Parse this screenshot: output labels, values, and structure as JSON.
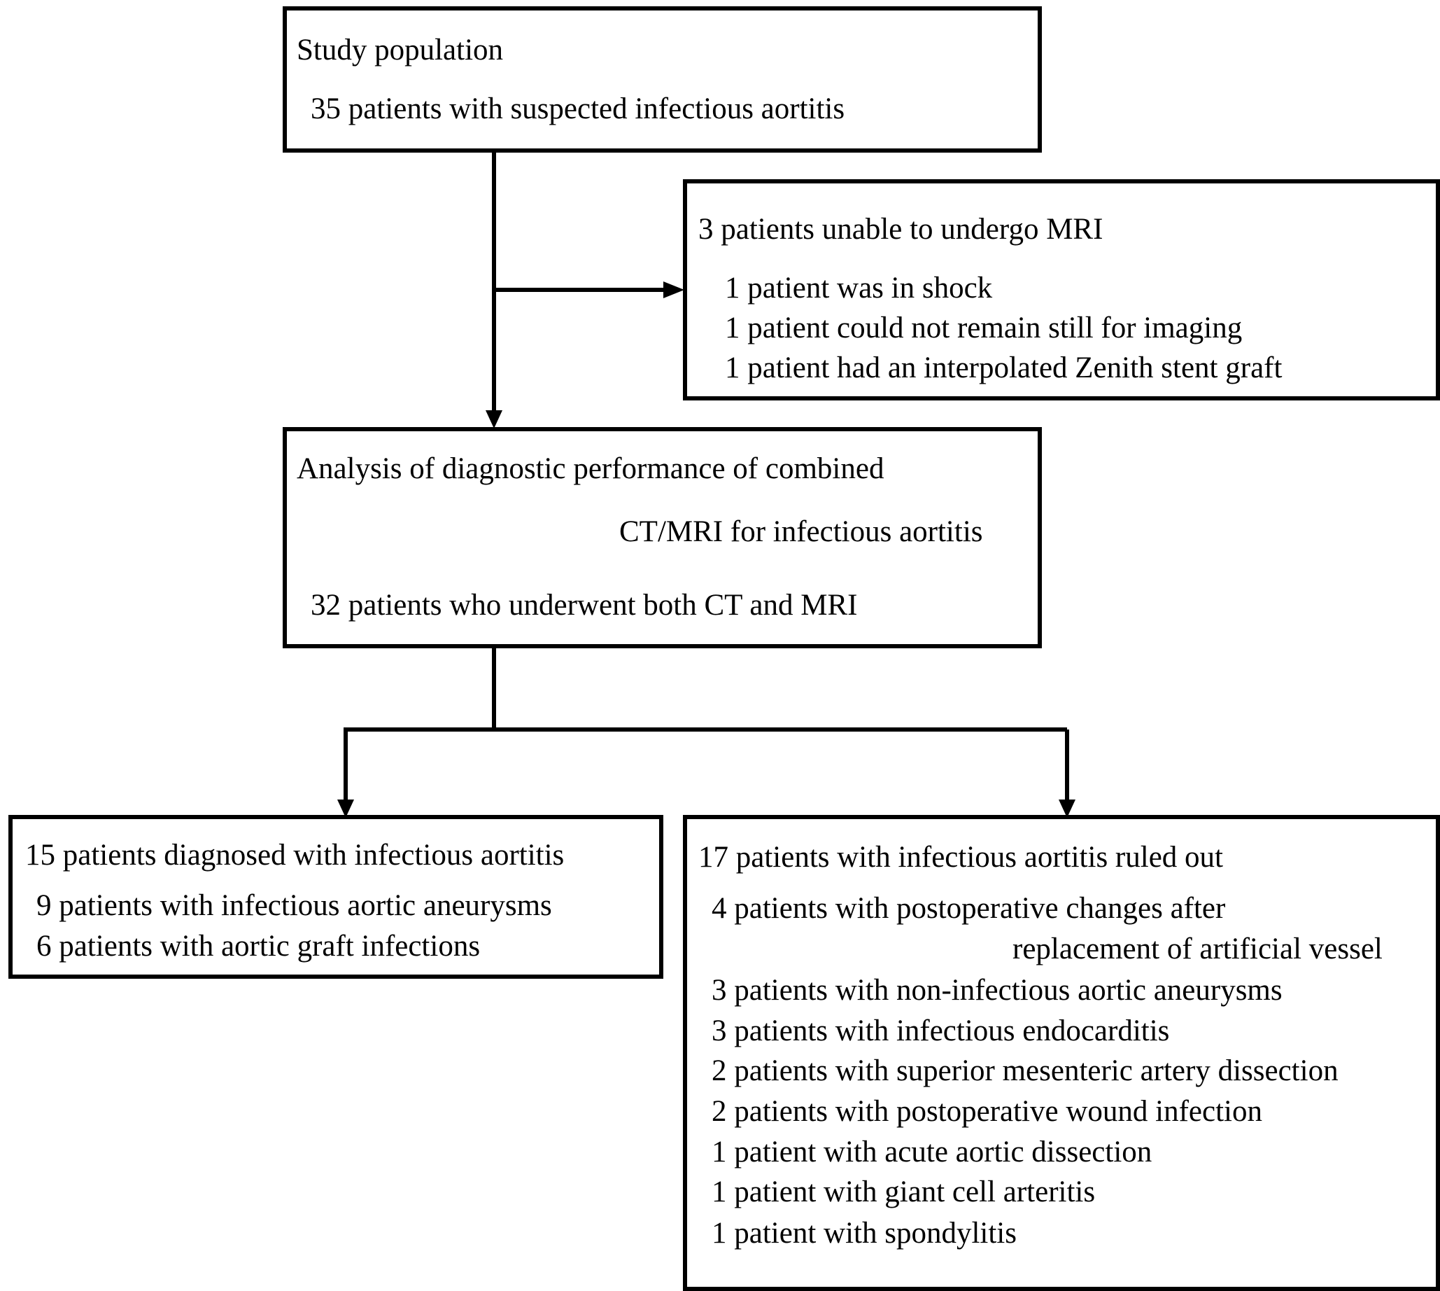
{
  "study_population": {
    "title": "Study population",
    "count_line": "35 patients with suspected infectious aortitis"
  },
  "excluded": {
    "title": "3 patients unable to undergo MRI",
    "reasons": [
      "1 patient was in shock",
      "1 patient could not remain still for imaging",
      "1 patient had an interpolated Zenith stent graft"
    ]
  },
  "analysis": {
    "title_line1": "Analysis of diagnostic performance of combined",
    "title_line2": "CT/MRI for infectious aortitis",
    "count_line": "32 patients who underwent both CT and MRI"
  },
  "diagnosed": {
    "title": "15 patients diagnosed with infectious aortitis",
    "items": [
      "9 patients with infectious aortic aneurysms",
      "6 patients with aortic graft infections"
    ]
  },
  "ruled_out": {
    "title": "17 patients with infectious aortitis ruled out",
    "items": [
      "4 patients with postoperative changes after",
      "replacement of artificial vessel",
      "3 patients with non-infectious aortic aneurysms",
      "3 patients with infectious endocarditis",
      "2 patients with superior  mesenteric artery dissection",
      "2 patients with postoperative wound infection",
      "1 patient with acute aortic dissection",
      "1 patient with giant cell arteritis",
      "1 patient with spondylitis"
    ]
  }
}
